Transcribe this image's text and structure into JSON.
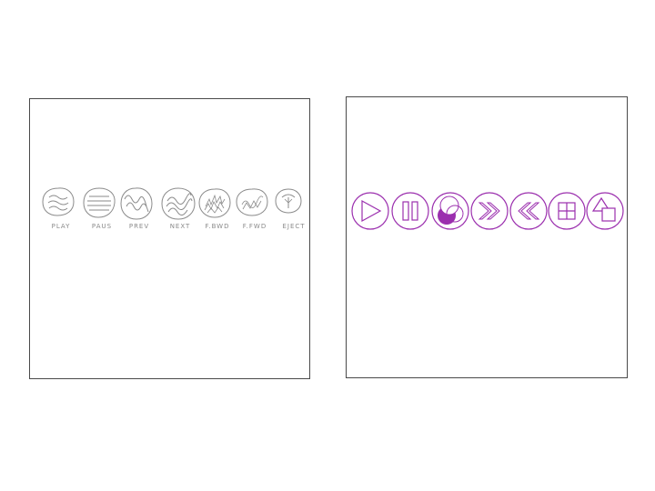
{
  "colors": {
    "accent": "#9b2fae",
    "sketch_stroke": "#8a8a8a",
    "panel_border": "#4a4a4a"
  },
  "sketch": {
    "labels": [
      "PLAY",
      "PAUS",
      "PREV",
      "NEXT",
      "F.BWD",
      "F.FWD",
      "EJECT"
    ]
  },
  "controls": {
    "buttons": [
      {
        "icon": "play-icon"
      },
      {
        "icon": "pause-icon"
      },
      {
        "icon": "record-icon"
      },
      {
        "icon": "fast-forward-icon"
      },
      {
        "icon": "rewind-icon"
      },
      {
        "icon": "grid-icon"
      },
      {
        "icon": "shapes-icon"
      }
    ]
  }
}
